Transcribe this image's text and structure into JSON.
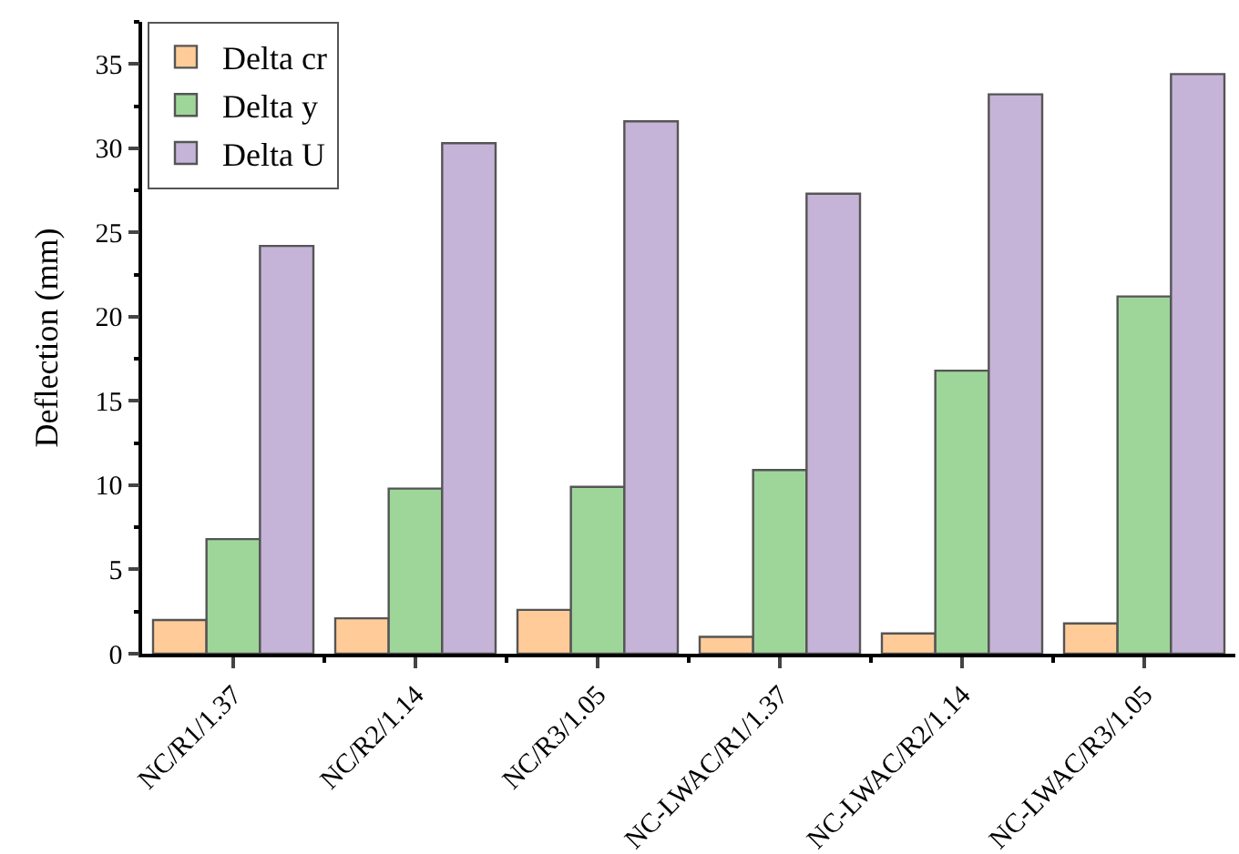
{
  "chart_data": {
    "type": "bar",
    "ylabel": "Deflection (mm)",
    "categories": [
      "NC/R1/1.37",
      "NC/R2/1.14",
      "NC/R3/1.05",
      "NC-LWAC/R1/1.37",
      "NC-LWAC/R2/1.14",
      "NC-LWAC/R3/1.05"
    ],
    "series": [
      {
        "name": "Delta cr",
        "color": "#ffcc99",
        "values": [
          2,
          2.1,
          2.6,
          1,
          1.2,
          1.8
        ]
      },
      {
        "name": "Delta y",
        "color": "#9ed69a",
        "values": [
          6.8,
          9.8,
          9.9,
          10.9,
          16.8,
          21.2
        ]
      },
      {
        "name": "Delta U",
        "color": "#c6b4d8",
        "values": [
          24.2,
          30.3,
          31.6,
          27.3,
          33.2,
          34.4
        ]
      }
    ],
    "ylim": [
      0,
      37.5
    ],
    "yticks": [
      0,
      5,
      10,
      15,
      20,
      25,
      30,
      35
    ],
    "grid": false,
    "legend": "top left"
  }
}
